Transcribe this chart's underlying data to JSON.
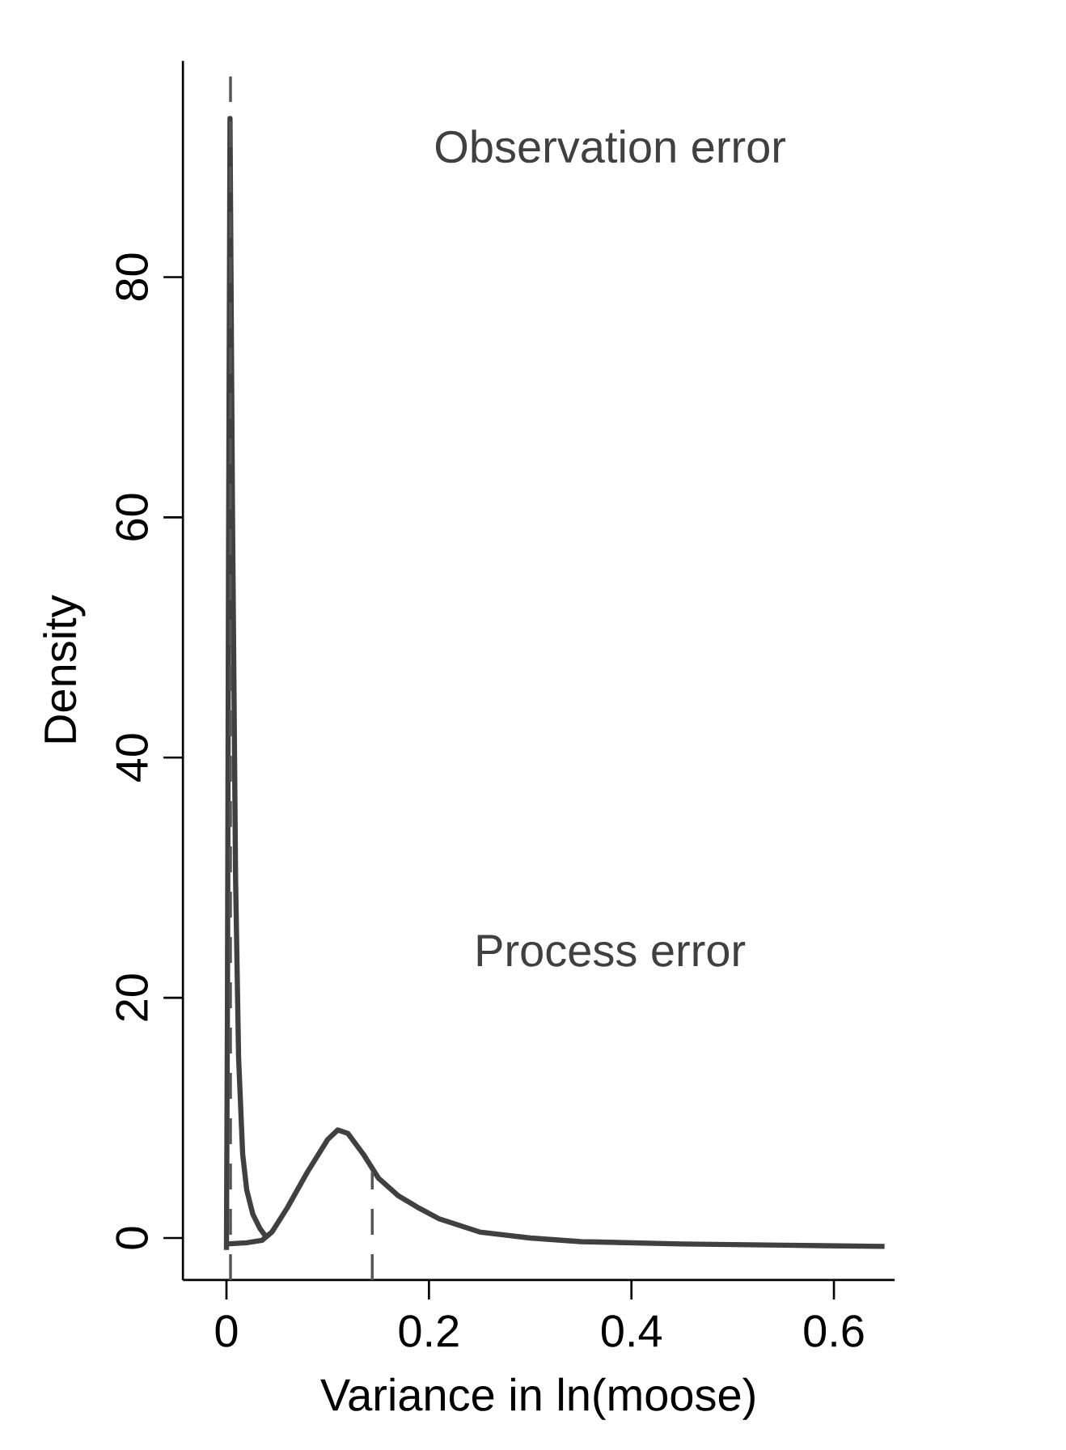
{
  "chart_data": {
    "type": "line",
    "xlabel": "Variance in ln(moose)",
    "ylabel": "Density",
    "xlim": [
      -0.043,
      0.66
    ],
    "ylim": [
      -3.5,
      98
    ],
    "xticks": [
      0,
      0.2,
      0.4,
      0.6
    ],
    "yticks": [
      0,
      20,
      40,
      60,
      80
    ],
    "grid": false,
    "marker": "none",
    "line_style": "solid",
    "annotations": [
      "Observation error",
      "Process error"
    ],
    "series": [
      {
        "color": "#404040",
        "x": [
          0.0,
          0.001,
          0.002,
          0.0035,
          0.006,
          0.009,
          0.012,
          0.016,
          0.02,
          0.026,
          0.033,
          0.04
        ],
        "values": [
          -1.0,
          20,
          55,
          93.2,
          60,
          30,
          15,
          7,
          4,
          2,
          0.8,
          0
        ]
      },
      {
        "color": "#404040",
        "x": [
          0.0,
          0.02,
          0.035,
          0.045,
          0.06,
          0.08,
          0.1,
          0.11,
          0.12,
          0.135,
          0.15,
          0.17,
          0.19,
          0.21,
          0.25,
          0.3,
          0.35,
          0.45,
          0.55,
          0.65
        ],
        "values": [
          -0.5,
          -0.4,
          -0.2,
          0.5,
          2.5,
          5.5,
          8.2,
          9,
          8.7,
          7,
          5,
          3.5,
          2.5,
          1.6,
          0.5,
          0,
          -0.3,
          -0.5,
          -0.6,
          -0.7
        ]
      },
      {
        "color": "#555555",
        "line_style": "dashed",
        "x": [
          0.004,
          0.004
        ],
        "values": [
          -3.5,
          96.7
        ]
      },
      {
        "color": "#555555",
        "line_style": "dashed",
        "x": [
          0.144,
          0.144
        ],
        "values": [
          -3.5,
          5.5
        ]
      }
    ]
  }
}
